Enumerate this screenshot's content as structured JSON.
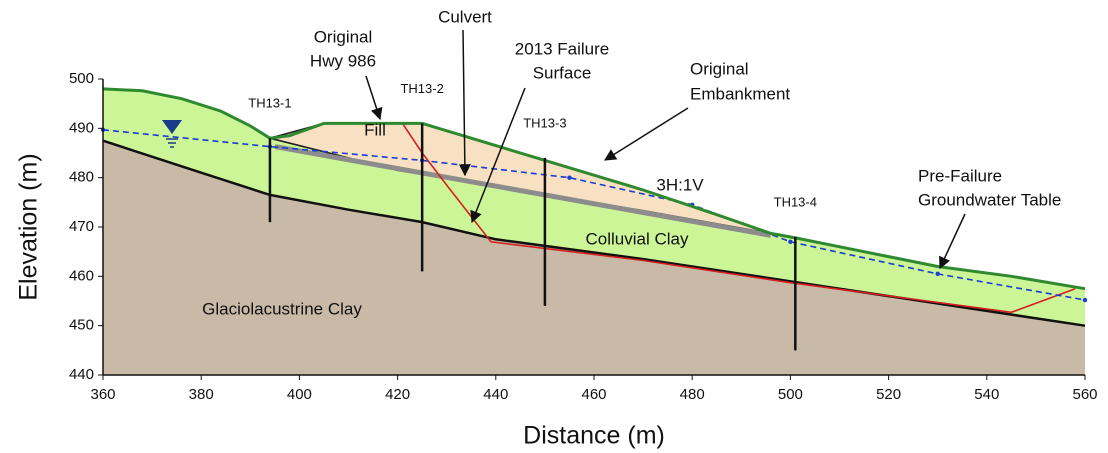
{
  "chart_data": {
    "type": "section",
    "xlabel": "Distance (m)",
    "ylabel": "Elevation (m)",
    "xlim": [
      360,
      560
    ],
    "ylim": [
      440,
      500
    ],
    "xticks": [
      360,
      380,
      400,
      420,
      440,
      460,
      480,
      500,
      520,
      540,
      560
    ],
    "yticks": [
      440,
      450,
      460,
      470,
      480,
      490,
      500
    ],
    "colors": {
      "colluvium": "#ccf597",
      "glaciolacustrine": "#c9baa7",
      "fill": "#f8e1c2",
      "surface": "#2f8a2f",
      "culvert": "#8c8c8c",
      "failure": "#d42020",
      "groundwater": "#1a3fd1",
      "borehole": "#111111"
    },
    "ground_surface": {
      "x": [
        360,
        368,
        376,
        384,
        390,
        394,
        398,
        405,
        425,
        440,
        455,
        470,
        485,
        496,
        501,
        515,
        530,
        545,
        560
      ],
      "y": [
        498,
        497.6,
        496,
        493.5,
        490.5,
        488,
        488.5,
        491,
        491,
        486.5,
        482,
        477.5,
        472.5,
        468.7,
        467.8,
        465,
        462,
        460,
        457.5
      ]
    },
    "glaciolacustrine_top": {
      "x": [
        360,
        380,
        394,
        410,
        425,
        440,
        470,
        500,
        530,
        560
      ],
      "y": [
        487.5,
        481,
        476.5,
        473.5,
        471,
        467.5,
        463.5,
        459,
        454.5,
        450
      ]
    },
    "fill_zone": {
      "x": [
        394,
        405,
        425,
        440,
        455,
        470,
        485,
        496,
        470,
        440,
        420,
        394
      ],
      "y": [
        488,
        491,
        491,
        486.5,
        482,
        477.5,
        472.5,
        468.7,
        473.3,
        478.3,
        481.5,
        488
      ]
    },
    "culvert": {
      "x": [
        395,
        496
      ],
      "y": [
        486.3,
        468.3
      ]
    },
    "failure_surface": {
      "x": [
        421,
        425,
        430,
        439,
        470,
        500,
        545,
        558
      ],
      "y": [
        491,
        485,
        478.5,
        467,
        463.2,
        458.7,
        452.7,
        457.5
      ]
    },
    "groundwater": {
      "x": [
        360,
        394,
        425,
        455,
        480,
        500,
        530,
        560
      ],
      "y": [
        489.7,
        486.3,
        483.5,
        480,
        474.5,
        467,
        460.5,
        455.2
      ]
    },
    "boreholes": [
      {
        "name": "TH13-1",
        "x": 394,
        "top": 488,
        "bottom": 471
      },
      {
        "name": "TH13-2",
        "x": 425,
        "top": 491,
        "bottom": 461
      },
      {
        "name": "TH13-3",
        "x": 450,
        "top": 484,
        "bottom": 454
      },
      {
        "name": "TH13-4",
        "x": 501,
        "top": 468,
        "bottom": 445
      }
    ],
    "annotations": [
      [
        "Original",
        "Hwy 986"
      ],
      [
        "Culvert"
      ],
      [
        "2013 Failure",
        "Surface"
      ],
      [
        "Original",
        "Embankment"
      ],
      [
        "Fill"
      ],
      [
        "3H:1V"
      ],
      [
        "Colluvial Clay"
      ],
      [
        "Glaciolacustrine Clay"
      ],
      [
        "Pre-Failure",
        "Groundwater Table"
      ]
    ]
  }
}
